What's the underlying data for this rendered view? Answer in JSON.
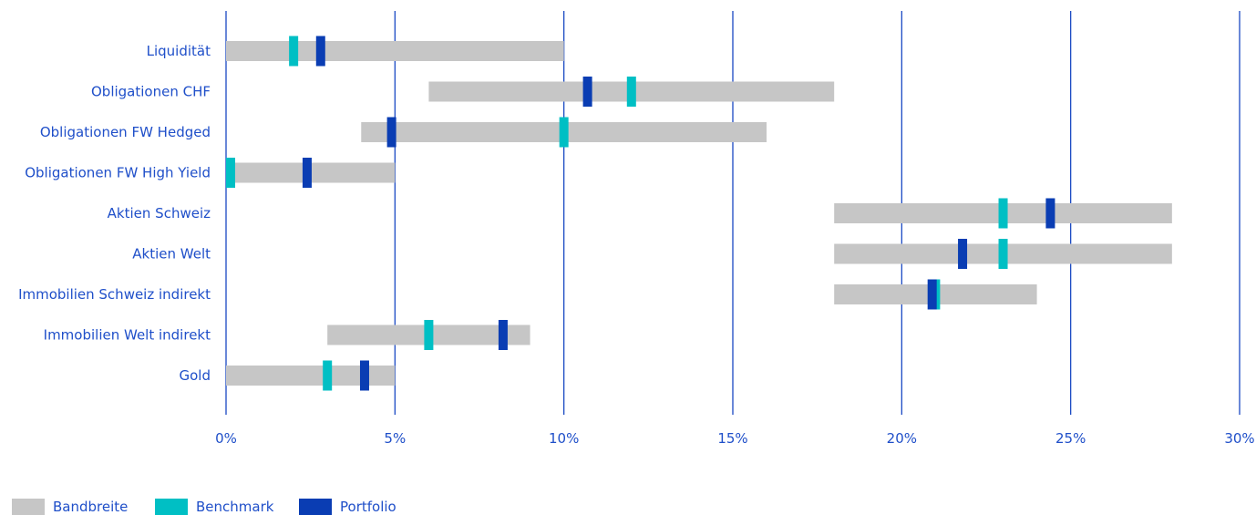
{
  "colors": {
    "bandbreite": "#c6c6c6",
    "benchmark": "#00bfc4",
    "portfolio": "#0a3db3",
    "axis": "#1a49c4",
    "text": "#1f4fc9"
  },
  "chart_data": {
    "type": "range-bar",
    "orientation": "horizontal",
    "title": "",
    "xlabel": "",
    "ylabel": "",
    "xlim": [
      0,
      30
    ],
    "x_ticks": [
      "0%",
      "5%",
      "10%",
      "15%",
      "20%",
      "25%",
      "30%"
    ],
    "grid": "vertical lines at each tick",
    "legend_position": "bottom-left",
    "legend": [
      "Bandbreite",
      "Benchmark",
      "Portfolio"
    ],
    "categories": [
      "Liquidität",
      "Obligationen CHF",
      "Obligationen FW Hedged",
      "Obligationen FW High Yield",
      "Aktien Schweiz",
      "Aktien Welt",
      "Immobilien Schweiz indirekt",
      "Immobilien Welt indirekt",
      "Gold"
    ],
    "series": [
      {
        "name": "Bandbreite",
        "kind": "range",
        "values": [
          [
            0,
            10
          ],
          [
            6,
            18
          ],
          [
            4,
            16
          ],
          [
            0,
            5
          ],
          [
            18,
            28
          ],
          [
            18,
            28
          ],
          [
            18,
            24
          ],
          [
            3,
            9
          ],
          [
            0,
            5
          ]
        ]
      },
      {
        "name": "Benchmark",
        "kind": "marker",
        "values": [
          2,
          12,
          10,
          0,
          23,
          23,
          21,
          6,
          3
        ]
      },
      {
        "name": "Portfolio",
        "kind": "marker",
        "values": [
          2.8,
          10.7,
          4.9,
          2.4,
          24.4,
          21.8,
          20.9,
          8.2,
          4.1
        ]
      }
    ]
  }
}
